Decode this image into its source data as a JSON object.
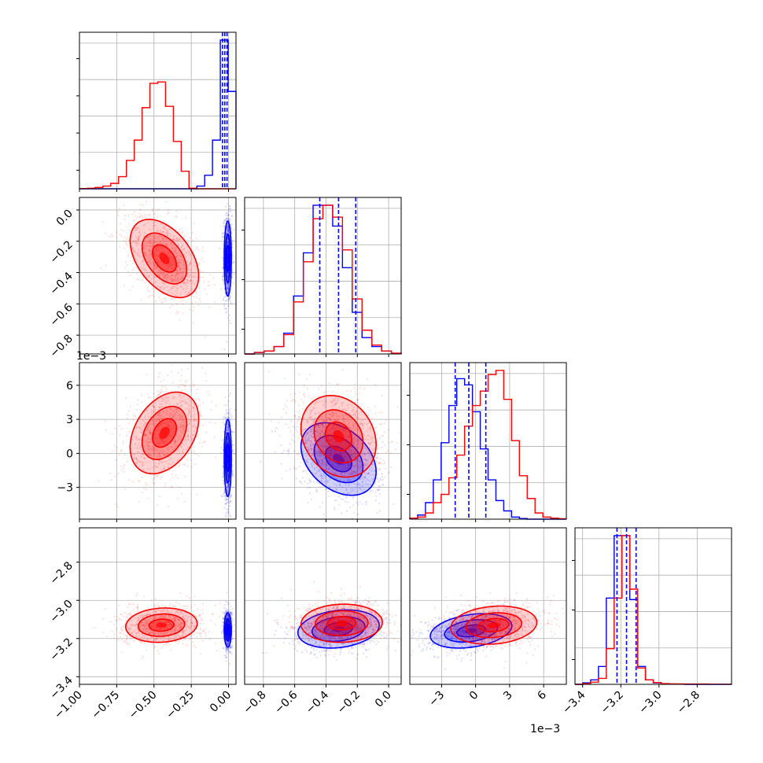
{
  "colors": {
    "series_a": "#ff0000",
    "series_b": "#0000ff",
    "grid": "#b0b0b0",
    "axis": "#000000"
  },
  "chart_data": {
    "type": "corner",
    "title": "",
    "grid": true,
    "series": [
      {
        "color": "#ff0000"
      },
      {
        "color": "#0000ff"
      }
    ],
    "parameters": [
      {
        "range": [
          -1.0,
          0.05
        ],
        "ticks": [
          -1.0,
          -0.75,
          -0.5,
          -0.25,
          0.0
        ],
        "tick_labels": [
          "−1.00",
          "−0.75",
          "−0.50",
          "−0.25",
          "0.00"
        ],
        "offset_label": ""
      },
      {
        "range": [
          -0.92,
          0.08
        ],
        "ticks": [
          -0.8,
          -0.6,
          -0.4,
          -0.2,
          0.0
        ],
        "tick_labels": [
          "−0.8",
          "−0.6",
          "−0.4",
          "−0.2",
          "0.0"
        ],
        "offset_label": ""
      },
      {
        "range": [
          -5.8,
          8.0
        ],
        "ticks": [
          -3,
          0,
          3,
          6
        ],
        "tick_labels": [
          "−3",
          "0",
          "3",
          "6"
        ],
        "offset_label": "1e−3"
      },
      {
        "range": [
          -3.44,
          -2.62
        ],
        "ticks": [
          -3.4,
          -3.2,
          -3.0,
          -2.8
        ],
        "tick_labels": [
          "−3.4",
          "−3.2",
          "−3.0",
          "−2.8"
        ],
        "offset_label": ""
      }
    ],
    "histograms": [
      {
        "param": 0,
        "red": {
          "edges": [
            -1.0,
            0.05
          ],
          "counts": [
            0.1,
            0.2,
            0.5,
            1.0,
            2.0,
            4.5,
            10.5,
            18.0,
            30.0,
            39.0,
            39.5,
            30.5,
            17.5,
            6.5,
            0.2,
            0,
            0,
            0,
            0,
            0
          ]
        },
        "blue": {
          "edges": [
            -1.0,
            0.05
          ],
          "counts": [
            0,
            0,
            0,
            0,
            0,
            0,
            0,
            0,
            0,
            0,
            0,
            0,
            0,
            0,
            0,
            1.0,
            5.0,
            18.0,
            55.0,
            36.0
          ]
        },
        "quantiles_blue": [
          -0.04,
          -0.025,
          -0.01
        ]
      },
      {
        "param": 1,
        "red": {
          "edges": [
            -0.92,
            0.08
          ],
          "counts": [
            0,
            1,
            2,
            5,
            13,
            35,
            62,
            91,
            100,
            92,
            70,
            37,
            16,
            6,
            2,
            0.5
          ]
        },
        "blue": {
          "edges": [
            -0.92,
            0.08
          ],
          "counts": [
            0,
            1,
            2,
            5,
            14,
            39,
            68,
            100,
            100,
            86,
            58,
            28,
            11,
            5,
            2,
            0.5
          ]
        },
        "quantiles_blue": [
          -0.44,
          -0.32,
          -0.21
        ]
      },
      {
        "param": 2,
        "red": {
          "edges": [
            -5.8,
            8.0
          ],
          "counts": [
            0.5,
            1,
            3,
            8,
            12,
            20,
            31,
            45,
            55,
            62,
            70,
            72,
            58,
            38,
            21,
            10,
            3,
            1,
            0.5,
            0.2
          ]
        },
        "blue": {
          "edges": [
            -5.8,
            8.0
          ],
          "counts": [
            0.5,
            2,
            8,
            19,
            37,
            55,
            68,
            65,
            52,
            34,
            19,
            9,
            4,
            1,
            0.3,
            0,
            0,
            0,
            0,
            0
          ]
        },
        "quantiles_blue": [
          -1.8,
          -0.6,
          0.9
        ]
      },
      {
        "param": 3,
        "red": {
          "edges": [
            -3.44,
            -2.62
          ],
          "counts": [
            0,
            0.5,
            1.5,
            4,
            24,
            58,
            100,
            64,
            11,
            3,
            1.2,
            0.5,
            0.3,
            0.3,
            0.2,
            0.2,
            0.2,
            0.1,
            0.1,
            0.1
          ]
        },
        "blue": {
          "edges": [
            -3.44,
            -2.62
          ],
          "counts": [
            0,
            1,
            3,
            12,
            58,
            100,
            100,
            57,
            12,
            3,
            1,
            0.3,
            0.2,
            0.1,
            0,
            0,
            0,
            0,
            0,
            0
          ]
        },
        "quantiles_blue": [
          -3.22,
          -3.17,
          -3.12
        ]
      }
    ],
    "panels_2d": [
      {
        "x_param": 0,
        "y_param": 1,
        "red": {
          "mean": [
            -0.43,
            -0.31
          ],
          "sd": [
            0.115,
            0.125
          ],
          "rho": -0.45
        },
        "blue": {
          "mean": [
            -0.005,
            -0.31
          ],
          "sd": [
            0.012,
            0.12
          ],
          "rho": 0.0
        }
      },
      {
        "x_param": 0,
        "y_param": 2,
        "red": {
          "mean": [
            -0.43,
            1.8
          ],
          "sd": [
            0.115,
            1.8
          ],
          "rho": 0.35
        },
        "blue": {
          "mean": [
            -0.005,
            -0.4
          ],
          "sd": [
            0.012,
            1.7
          ],
          "rho": 0.0
        }
      },
      {
        "x_param": 1,
        "y_param": 2,
        "red": {
          "mean": [
            -0.32,
            1.5
          ],
          "sd": [
            0.12,
            1.8
          ],
          "rho": -0.2
        },
        "blue": {
          "mean": [
            -0.32,
            -0.5
          ],
          "sd": [
            0.12,
            1.6
          ],
          "rho": -0.35
        }
      },
      {
        "x_param": 0,
        "y_param": 3,
        "red": {
          "mean": [
            -0.45,
            -3.13
          ],
          "sd": [
            0.12,
            0.045
          ],
          "rho": 0.1
        },
        "blue": {
          "mean": [
            -0.005,
            -3.155
          ],
          "sd": [
            0.012,
            0.045
          ],
          "rho": 0.0
        }
      },
      {
        "x_param": 1,
        "y_param": 3,
        "red": {
          "mean": [
            -0.3,
            -3.12
          ],
          "sd": [
            0.13,
            0.05
          ],
          "rho": 0.05
        },
        "blue": {
          "mean": [
            -0.32,
            -3.15
          ],
          "sd": [
            0.13,
            0.05
          ],
          "rho": 0.2
        }
      },
      {
        "x_param": 2,
        "y_param": 3,
        "red": {
          "mean": [
            1.6,
            -3.13
          ],
          "sd": [
            1.9,
            0.05
          ],
          "rho": 0.15
        },
        "blue": {
          "mean": [
            -0.4,
            -3.16
          ],
          "sd": [
            1.8,
            0.045
          ],
          "rho": 0.3
        }
      }
    ]
  }
}
